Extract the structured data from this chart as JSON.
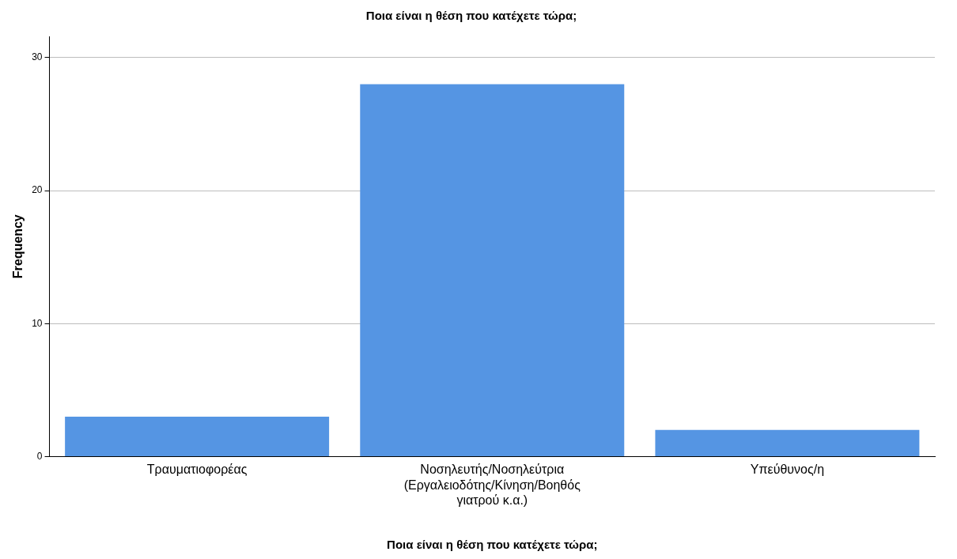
{
  "chart_data": {
    "type": "bar",
    "title": "Ποια είναι η θέση που κατέχετε τώρα;",
    "xlabel": "Ποια είναι η θέση που κατέχετε τώρα;",
    "ylabel": "Frequency",
    "categories": [
      "Τραυματιοφορέας",
      "Νοσηλευτής/Νοσηλεύτρια (Εργαλειοδότης/Κίνηση/Βοηθός γιατρού κ.α.)",
      "Υπεύθυνος/η"
    ],
    "values": [
      3,
      28,
      2
    ],
    "color": "#5595e3",
    "ylim": [
      0,
      31.6
    ],
    "yticks": [
      0,
      10,
      20,
      30
    ],
    "grid": "y",
    "legend": false
  }
}
